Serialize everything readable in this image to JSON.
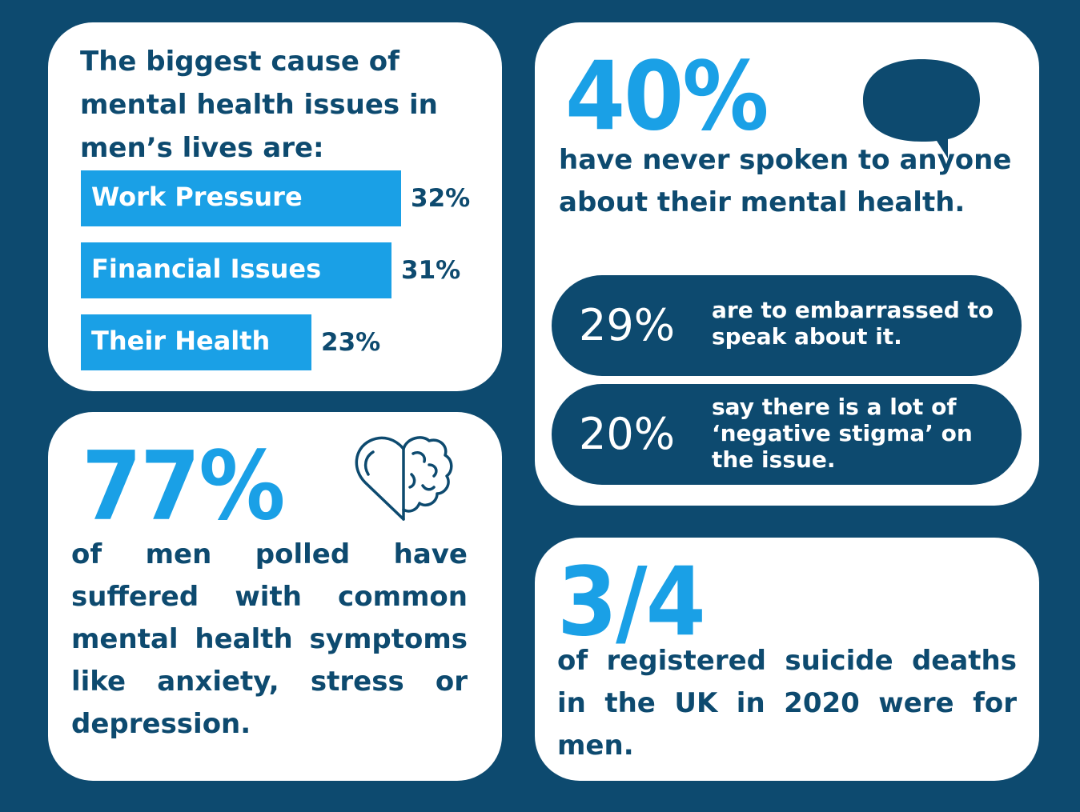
{
  "chart_data": {
    "type": "bar",
    "orientation": "horizontal",
    "title": "The biggest cause of mental health issues in men’s lives are:",
    "categories": [
      "Work Pressure",
      "Financial Issues",
      "Their Health"
    ],
    "values": [
      32,
      31,
      23
    ],
    "value_labels": [
      "32%",
      "31%",
      "23%"
    ],
    "unit": "%",
    "xlim": [
      0,
      32
    ],
    "grid": false,
    "legend": "none",
    "bar_color": "#1aa0e6",
    "label_color": "#ffffff",
    "value_color": "#0d4a6f"
  },
  "never_spoken": {
    "stat": "40%",
    "text": "have never spoken to anyone about their mental health.",
    "icon": "speech-bubble-icon",
    "reasons": [
      {
        "stat": "29%",
        "text": "are to embarrassed to speak about it."
      },
      {
        "stat": "20%",
        "text": "say there is a lot of ‘negative stigma’ on the issue."
      }
    ]
  },
  "symptoms": {
    "stat": "77%",
    "text": "of men polled have suffered with common mental health symptoms like anxiety, stress or depression.",
    "icon": "heart-brain-icon"
  },
  "suicide": {
    "stat": "3/4",
    "text": "of registered suicide deaths in the UK in 2020 were for men."
  },
  "colors": {
    "background": "#0d4a6f",
    "accent": "#1aa0e6",
    "card": "#ffffff"
  }
}
